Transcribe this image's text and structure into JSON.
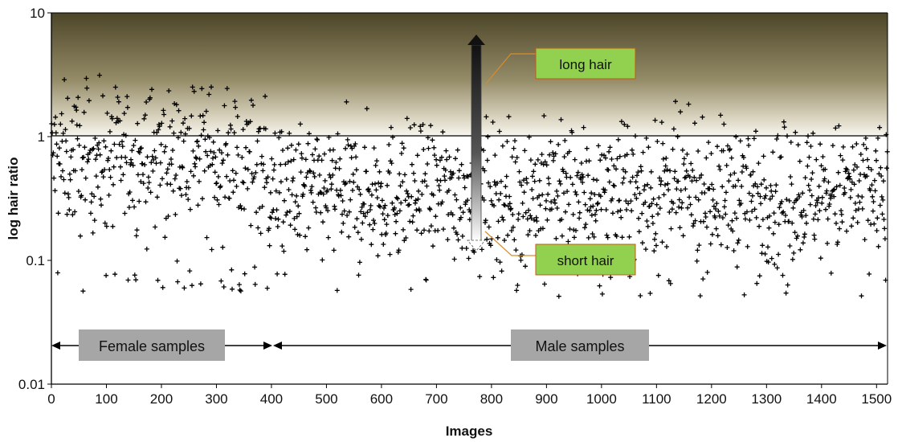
{
  "chart_data": {
    "type": "scatter",
    "title": "",
    "xlabel": "Images",
    "ylabel": "log hair ratio",
    "xlim": [
      0,
      1520
    ],
    "ylim": [
      0.01,
      10
    ],
    "yscale": "log",
    "x_ticks": [
      "0",
      "100",
      "200",
      "300",
      "400",
      "500",
      "600",
      "700",
      "800",
      "900",
      "1000",
      "1100",
      "1200",
      "1300",
      "1400",
      "1500"
    ],
    "y_ticks": [
      "0.01",
      "0.1",
      "1",
      "10"
    ],
    "marker": "plus",
    "marker_color": "#000000",
    "threshold": 1,
    "point_count": 1520,
    "callouts": [
      {
        "label": "long hair",
        "color": "#92d050"
      },
      {
        "label": "short hair",
        "color": "#92d050"
      }
    ],
    "groups": [
      {
        "label": "Female samples",
        "x_range": [
          0,
          400
        ],
        "y": 0.02
      },
      {
        "label": "Male samples",
        "x_range": [
          400,
          1520
        ],
        "y": 0.02
      }
    ],
    "background": {
      "above_threshold": "gradient dark olive to light",
      "below_threshold": "white"
    }
  }
}
